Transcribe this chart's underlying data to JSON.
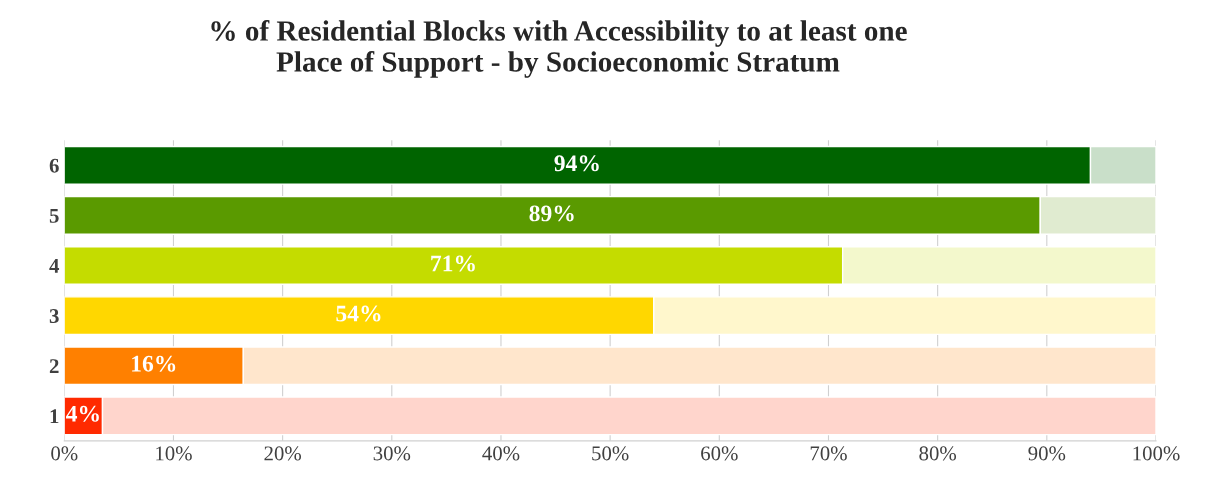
{
  "chart_data": {
    "type": "bar",
    "orientation": "horizontal",
    "stacked": true,
    "title": "% of Residential Blocks with Accessibility to at least one\nPlace of Support - by Socioeconomic Stratum",
    "categories": [
      "6",
      "5",
      "4",
      "3",
      "2",
      "1"
    ],
    "series": [
      {
        "colors": [
          "#006400",
          "#5a9a00",
          "#c4dc00",
          "#ffd700",
          "#ff8000",
          "#ff2a00"
        ],
        "values": [
          94,
          89.4,
          71.3,
          54,
          16.4,
          3.5
        ],
        "value_labels": [
          "94%",
          "89%",
          "71%",
          "54%",
          "16%",
          "4%"
        ]
      },
      {
        "colors": [
          "#c9dfc9",
          "#e0ebd0",
          "#f3f8cc",
          "#fff7cc",
          "#ffe6cc",
          "#ffd5cc"
        ],
        "values": [
          6,
          10.6,
          28.7,
          46,
          83.6,
          96.5
        ]
      }
    ],
    "xlim": [
      0,
      100
    ],
    "xticks": [
      {
        "value": 0,
        "label": "0%"
      },
      {
        "value": 10,
        "label": "10%"
      },
      {
        "value": 20,
        "label": "20%"
      },
      {
        "value": 30,
        "label": "30%"
      },
      {
        "value": 40,
        "label": "40%"
      },
      {
        "value": 50,
        "label": "50%"
      },
      {
        "value": 60,
        "label": "60%"
      },
      {
        "value": 70,
        "label": "70%"
      },
      {
        "value": 80,
        "label": "80%"
      },
      {
        "value": 90,
        "label": "90%"
      },
      {
        "value": 100,
        "label": "100%"
      }
    ],
    "grid": "x",
    "legend": false
  }
}
